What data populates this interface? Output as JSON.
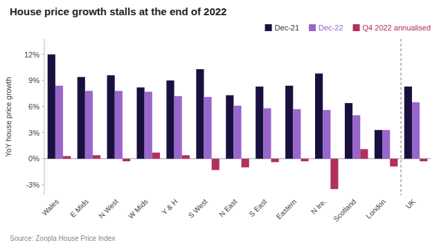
{
  "chart_data": {
    "type": "bar",
    "title": "House price growth stalls at the end of 2022",
    "ylabel": "YoY house price growth",
    "annotations": [
      "Source: Zoopla House Price Index"
    ],
    "categories": [
      "Wales",
      "E Mids",
      "N West",
      "W Mids",
      "Y & H",
      "S West",
      "N East",
      "S East",
      "Eastern",
      "N Ire.",
      "Scotland",
      "London",
      "UK"
    ],
    "series": [
      {
        "name": "Dec-21",
        "color": "#1a1040",
        "values": [
          12.0,
          9.4,
          9.6,
          8.2,
          9.0,
          10.3,
          7.3,
          8.3,
          8.4,
          9.8,
          6.4,
          3.3,
          8.3
        ]
      },
      {
        "name": "Dec-22",
        "color": "#9966cc",
        "values": [
          8.4,
          7.8,
          7.8,
          7.7,
          7.2,
          7.1,
          6.1,
          5.8,
          5.7,
          5.6,
          5.0,
          3.3,
          6.5
        ]
      },
      {
        "name": "Q4 2022 annualised",
        "color": "#b03060",
        "values": [
          0.3,
          0.4,
          -0.3,
          0.7,
          0.4,
          -1.3,
          -1.0,
          -0.4,
          -0.3,
          -3.5,
          1.1,
          -0.9,
          -0.3
        ]
      }
    ],
    "ylim": [
      -4.2,
      13.8
    ],
    "yticks": [
      {
        "value": -3,
        "label": "-3%"
      },
      {
        "value": 0,
        "label": "0%"
      },
      {
        "value": 3,
        "label": "3%"
      },
      {
        "value": 6,
        "label": "6%"
      },
      {
        "value": 9,
        "label": "9%"
      },
      {
        "value": 12,
        "label": "12%"
      }
    ],
    "grid": false,
    "legend": "upper right"
  }
}
